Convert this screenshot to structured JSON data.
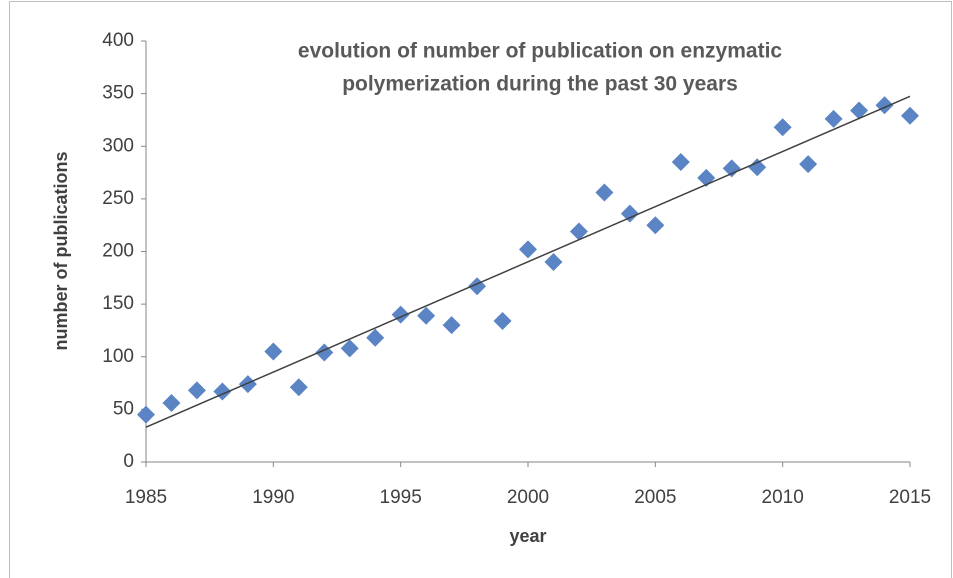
{
  "chart_data": {
    "type": "scatter",
    "title": [
      "evolution of number of publication on enzymatic",
      "polymerization during the past 30 years"
    ],
    "xlabel": "year",
    "ylabel": "number of publications",
    "x": [
      1985,
      1986,
      1987,
      1988,
      1989,
      1990,
      1991,
      1992,
      1993,
      1994,
      1995,
      1996,
      1997,
      1998,
      1999,
      2000,
      2001,
      2002,
      2003,
      2004,
      2005,
      2006,
      2007,
      2008,
      2009,
      2010,
      2011,
      2012,
      2013,
      2014,
      2015
    ],
    "values": [
      45,
      56,
      68,
      67,
      74,
      105,
      71,
      104,
      108,
      118,
      140,
      139,
      130,
      167,
      134,
      202,
      190,
      219,
      256,
      236,
      225,
      285,
      270,
      279,
      280,
      318,
      283,
      326,
      334,
      339,
      329
    ],
    "color": "#5b84c4",
    "trendline": true,
    "trendline_color": "#404040",
    "xlim": [
      1985,
      2015
    ],
    "xticks": [
      1985,
      1990,
      1995,
      2000,
      2005,
      2010,
      2015
    ],
    "ylim": [
      0,
      400
    ],
    "yticks": [
      0,
      50,
      100,
      150,
      200,
      250,
      300,
      350,
      400
    ],
    "grid": false
  }
}
